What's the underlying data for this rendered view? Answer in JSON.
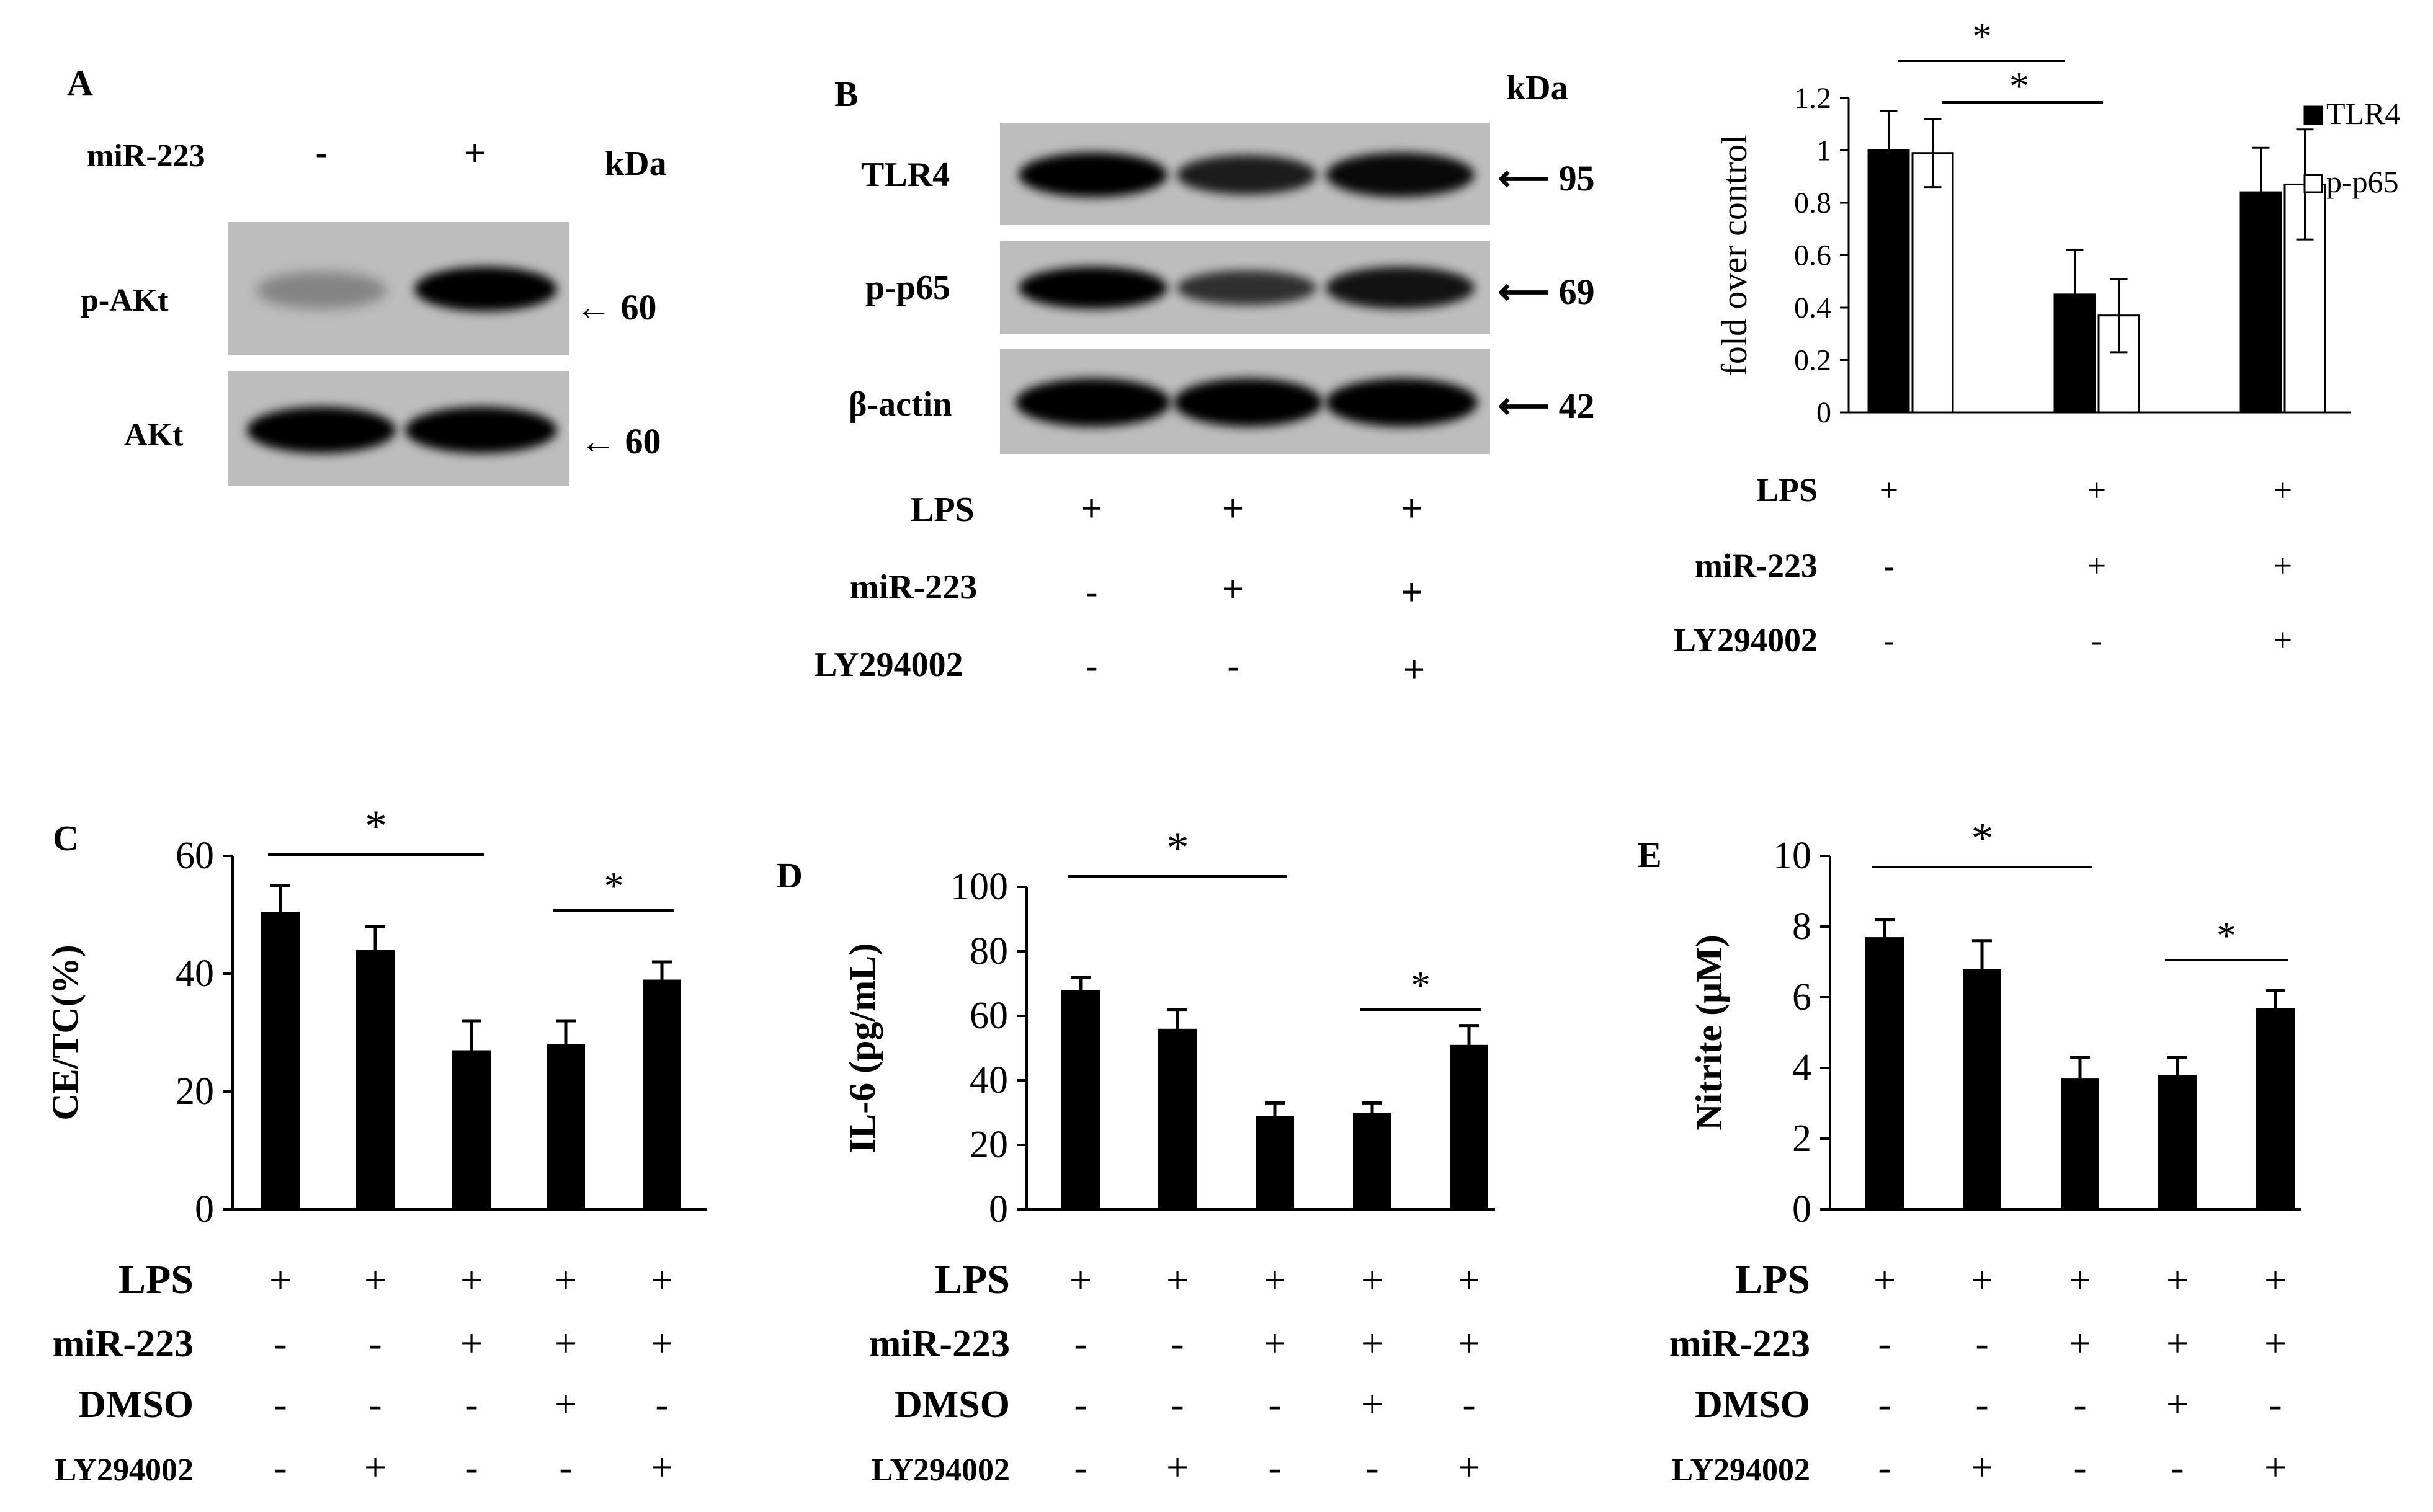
{
  "panelA": {
    "letter": "A",
    "treatment": {
      "label": "miR-223",
      "states": [
        "-",
        "+"
      ]
    },
    "kda": "kDa",
    "rows": [
      {
        "protein": "p-AKt",
        "mw": "60",
        "bands": [
          0.35,
          1.0
        ]
      },
      {
        "protein": "AKt",
        "mw": "60",
        "bands": [
          1.0,
          1.0
        ]
      }
    ]
  },
  "panelB": {
    "letter": "B",
    "kda": "kDa",
    "rows": [
      {
        "protein": "TLR4",
        "mw": "95",
        "bands": [
          1.0,
          0.75,
          0.9
        ]
      },
      {
        "protein": "p-p65",
        "mw": "69",
        "bands": [
          1.0,
          0.6,
          0.85
        ]
      },
      {
        "protein": "β-actin",
        "mw": "42",
        "bands": [
          1.0,
          1.0,
          1.0
        ]
      }
    ],
    "conditions": [
      {
        "label": "LPS",
        "values": [
          "+",
          "+",
          "+"
        ]
      },
      {
        "label": "miR-223",
        "values": [
          "-",
          "+",
          "+"
        ]
      },
      {
        "label": "LY294002",
        "values": [
          "-",
          "-",
          "+"
        ]
      }
    ]
  },
  "chart_data": [
    {
      "panel": "B",
      "type": "bar",
      "ylabel": "fold over control",
      "ylim": [
        0,
        1.2
      ],
      "yticks": [
        "0",
        "0.2",
        "0.4",
        "0.6",
        "0.8",
        "1",
        "1.2"
      ],
      "legend_position": "top-right",
      "series": [
        {
          "name": "TLR4",
          "color": "#000000",
          "values": [
            1.0,
            0.45,
            0.84
          ],
          "errors": [
            0.15,
            0.17,
            0.17
          ]
        },
        {
          "name": "p-p65",
          "color": "#ffffff",
          "values": [
            0.99,
            0.37,
            0.87
          ],
          "errors": [
            0.13,
            0.14,
            0.21
          ]
        }
      ],
      "significance": [
        "*",
        "*"
      ],
      "conditions": [
        {
          "label": "LPS",
          "values": [
            "+",
            "+",
            "+"
          ]
        },
        {
          "label": "miR-223",
          "values": [
            "-",
            "+",
            "+"
          ]
        },
        {
          "label": "LY294002",
          "values": [
            "-",
            "-",
            "+"
          ]
        }
      ]
    },
    {
      "panel": "C",
      "type": "bar",
      "ylabel": "CE/TC(%)",
      "ylim": [
        0,
        60
      ],
      "yticks": [
        "0",
        "20",
        "40",
        "60"
      ],
      "values": [
        50.5,
        44,
        27,
        28,
        39
      ],
      "errors": [
        4.5,
        4,
        5,
        4,
        3
      ],
      "significance": [
        "*",
        "*"
      ],
      "conditions": [
        {
          "label": "LPS",
          "values": [
            "+",
            "+",
            "+",
            "+",
            "+"
          ]
        },
        {
          "label": "miR-223",
          "values": [
            "-",
            "-",
            "+",
            "+",
            "+"
          ]
        },
        {
          "label": "DMSO",
          "values": [
            "-",
            "-",
            "-",
            "+",
            "-"
          ]
        },
        {
          "label": "LY294002",
          "values": [
            "-",
            "+",
            "-",
            "-",
            "+"
          ]
        }
      ]
    },
    {
      "panel": "D",
      "type": "bar",
      "ylabel": "IL-6  (pg/mL)",
      "ylim": [
        0,
        100
      ],
      "yticks": [
        "0",
        "20",
        "40",
        "60",
        "80",
        "100"
      ],
      "values": [
        68,
        56,
        29,
        30,
        51
      ],
      "errors": [
        4,
        6,
        4,
        3,
        6
      ],
      "significance": [
        "*",
        "*"
      ],
      "conditions": [
        {
          "label": "LPS",
          "values": [
            "+",
            "+",
            "+",
            "+",
            "+"
          ]
        },
        {
          "label": "miR-223",
          "values": [
            "-",
            "-",
            "+",
            "+",
            "+"
          ]
        },
        {
          "label": "DMSO",
          "values": [
            "-",
            "-",
            "-",
            "+",
            "-"
          ]
        },
        {
          "label": "LY294002",
          "values": [
            "-",
            "+",
            "-",
            "-",
            "+"
          ]
        }
      ]
    },
    {
      "panel": "E",
      "type": "bar",
      "ylabel": "Nitrite  (μM)",
      "ylim": [
        0,
        10
      ],
      "yticks": [
        "0",
        "2",
        "4",
        "6",
        "8",
        "10"
      ],
      "values": [
        7.7,
        6.8,
        3.7,
        3.8,
        5.7
      ],
      "errors": [
        0.5,
        0.8,
        0.6,
        0.5,
        0.5
      ],
      "significance": [
        "*",
        "*"
      ],
      "conditions": [
        {
          "label": "LPS",
          "values": [
            "+",
            "+",
            "+",
            "+",
            "+"
          ]
        },
        {
          "label": "miR-223",
          "values": [
            "-",
            "-",
            "+",
            "+",
            "+"
          ]
        },
        {
          "label": "DMSO",
          "values": [
            "-",
            "-",
            "-",
            "+",
            "-"
          ]
        },
        {
          "label": "LY294002",
          "values": [
            "-",
            "+",
            "-",
            "-",
            "+"
          ]
        }
      ]
    }
  ],
  "panel_letters": {
    "C": "C",
    "D": "D",
    "E": "E"
  }
}
